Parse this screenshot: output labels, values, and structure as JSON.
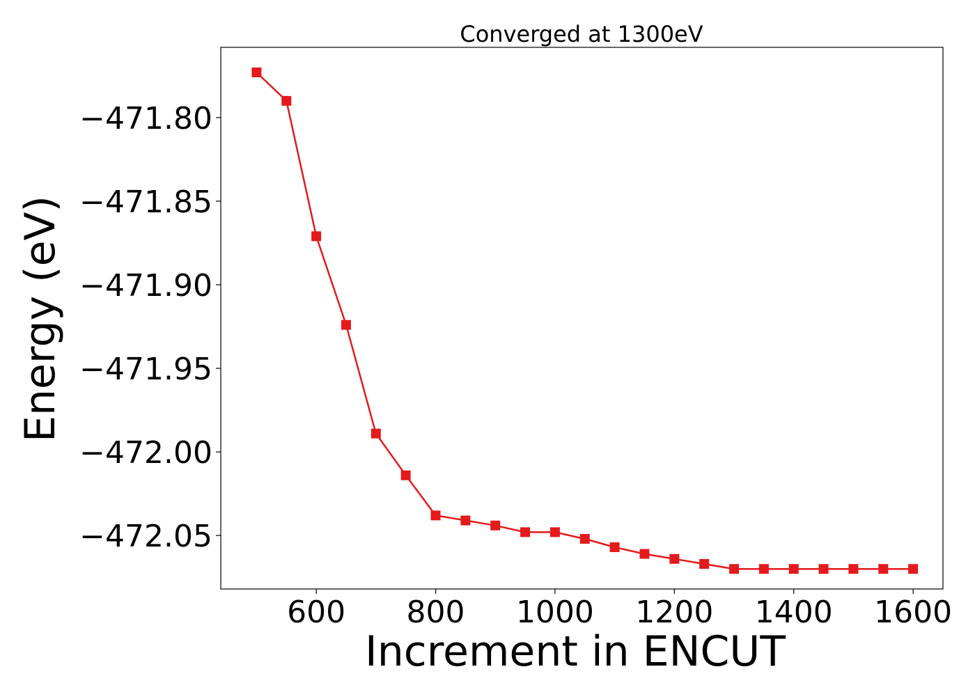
{
  "chart_data": {
    "type": "line",
    "title": "Converged at 1300eV",
    "xlabel": "Increment in ENCUT",
    "ylabel": "Energy (eV)",
    "xlim": [
      440,
      1650
    ],
    "ylim": [
      -472.082,
      -471.758
    ],
    "xticks": [
      600,
      800,
      1000,
      1200,
      1400,
      1600
    ],
    "xtick_labels": [
      "600",
      "800",
      "1000",
      "1200",
      "1400",
      "1600"
    ],
    "yticks": [
      -471.8,
      -471.85,
      -471.9,
      -471.95,
      -472.0,
      -472.05
    ],
    "ytick_labels": [
      "−471.80",
      "−471.85",
      "−471.90",
      "−471.95",
      "−472.00",
      "−472.05"
    ],
    "grid": false,
    "series": [
      {
        "color": "#e41a1c",
        "marker": "square",
        "x": [
          500,
          550,
          600,
          650,
          700,
          750,
          800,
          850,
          900,
          950,
          1000,
          1050,
          1100,
          1150,
          1200,
          1250,
          1300,
          1350,
          1400,
          1450,
          1500,
          1550,
          1600
        ],
        "values": [
          -471.773,
          -471.79,
          -471.871,
          -471.924,
          -471.989,
          -472.014,
          -472.038,
          -472.041,
          -472.044,
          -472.048,
          -472.048,
          -472.052,
          -472.057,
          -472.061,
          -472.064,
          -472.067,
          -472.07,
          -472.07,
          -472.07,
          -472.07,
          -472.07,
          -472.07,
          -472.07
        ]
      }
    ]
  }
}
